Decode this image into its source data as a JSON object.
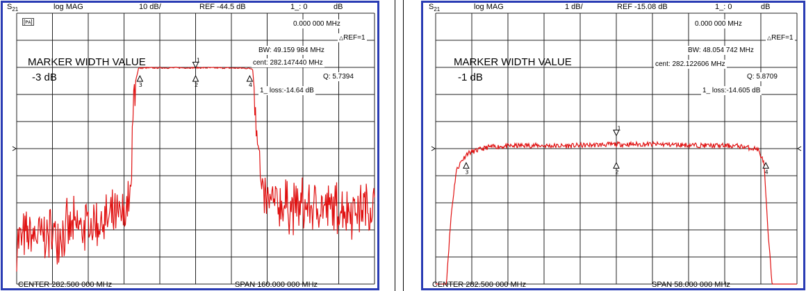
{
  "dividers": true,
  "trace_color": "#e01010",
  "frame_color": "#2a3cb4",
  "panels": [
    {
      "header": {
        "param": "S",
        "param_sub": "21",
        "format": "log MAG",
        "scale": "10 dB/",
        "ref": "REF -44.5 dB",
        "marker": "1_: 0",
        "unit": "dB"
      },
      "corner_icon": "[ᴘᴀ]",
      "marker_freq": "0.000 000 MHz",
      "ref_label": "REF=1",
      "bw_label": "BW:",
      "bw_value": "49.159 984 MHz",
      "cent_label": "cent:",
      "cent_value": "282.147440 MHz",
      "q_label": "Q:",
      "q_value": "5.7394",
      "loss_label": "1_ loss:",
      "loss_value": "-14.64 dB",
      "title": "MARKER WIDTH VALUE",
      "width_value": "-3 dB",
      "footer_center": "CENTER  282.500 000 MHz",
      "footer_span": "SPAN  160.000 000 MHz"
    },
    {
      "header": {
        "param": "S",
        "param_sub": "21",
        "format": "log MAG",
        "scale": "1 dB/",
        "ref": "REF -15.08 dB",
        "marker": "1_: 0",
        "unit": "dB"
      },
      "marker_freq": "0.000 000 MHz",
      "ref_label": "REF=1",
      "bw_label": "BW:",
      "bw_value": "48.054 742 MHz",
      "cent_label": "cent:",
      "cent_value": "282.122606 MHz",
      "q_label": "Q:",
      "q_value": "5.8709",
      "loss_label": "1_ loss:",
      "loss_value": "-14.605 dB",
      "title": "MARKER WIDTH VALUE",
      "width_value": "-1 dB",
      "footer_center": "CENTER  282.500 000 MHz",
      "footer_span": "SPAN  58.000 000 MHz"
    }
  ],
  "chart_data": [
    {
      "type": "line",
      "title": "MARKER WIDTH VALUE -3 dB",
      "x_center_mhz": 282.5,
      "x_span_mhz": 160.0,
      "xlim": [
        202.5,
        362.5
      ],
      "scale_db_per_div": 10,
      "ref_db": -44.5,
      "ylim": [
        -94.5,
        5.5
      ],
      "grid": true,
      "series": [
        {
          "x": [
            202.5,
            218,
            234,
            250,
            253.5,
            255,
            257,
            260,
            270,
            282.5,
            295,
            305,
            308,
            309.5,
            312,
            315,
            330,
            350,
            362.5
          ],
          "y": [
            -78,
            -76,
            -73,
            -70,
            -63,
            -22,
            -14.8,
            -14.7,
            -14.65,
            -14.64,
            -14.7,
            -14.8,
            -15,
            -30,
            -62,
            -65,
            -66,
            -67,
            -66
          ]
        }
      ],
      "markers": [
        {
          "id": "1",
          "x_mhz": 282.5,
          "y_db": -14.64
        },
        {
          "id": "2",
          "x_mhz": 282.5,
          "y_db": -17.6
        },
        {
          "id": "3",
          "x_mhz": 257.6,
          "y_db": -17.6
        },
        {
          "id": "4",
          "x_mhz": 306.7,
          "y_db": -17.6
        }
      ]
    },
    {
      "type": "line",
      "title": "MARKER WIDTH VALUE -1 dB",
      "x_center_mhz": 282.5,
      "x_span_mhz": 58.0,
      "xlim": [
        253.5,
        311.5
      ],
      "scale_db_per_div": 1,
      "ref_db": -15.08,
      "ylim": [
        -20.08,
        -10.08
      ],
      "grid": true,
      "series": [
        {
          "x": [
            253.5,
            255.2,
            256.0,
            256.8,
            257.6,
            258.6,
            262,
            268,
            274,
            282.5,
            290,
            296,
            302,
            305.2,
            306.2,
            306.8,
            307.5,
            308.5,
            311.5
          ],
          "y": [
            -20.08,
            -20.08,
            -17.5,
            -15.9,
            -15.55,
            -15.25,
            -15.02,
            -14.96,
            -14.98,
            -14.92,
            -14.92,
            -14.96,
            -14.98,
            -15.1,
            -15.6,
            -18.0,
            -20.08,
            -20.08,
            -20.08
          ]
        }
      ],
      "markers": [
        {
          "id": "1",
          "x_mhz": 282.5,
          "y_db": -14.6
        },
        {
          "id": "2",
          "x_mhz": 282.5,
          "y_db": -15.6
        },
        {
          "id": "3",
          "x_mhz": 258.4,
          "y_db": -15.6
        },
        {
          "id": "4",
          "x_mhz": 306.5,
          "y_db": -15.6
        }
      ]
    }
  ]
}
